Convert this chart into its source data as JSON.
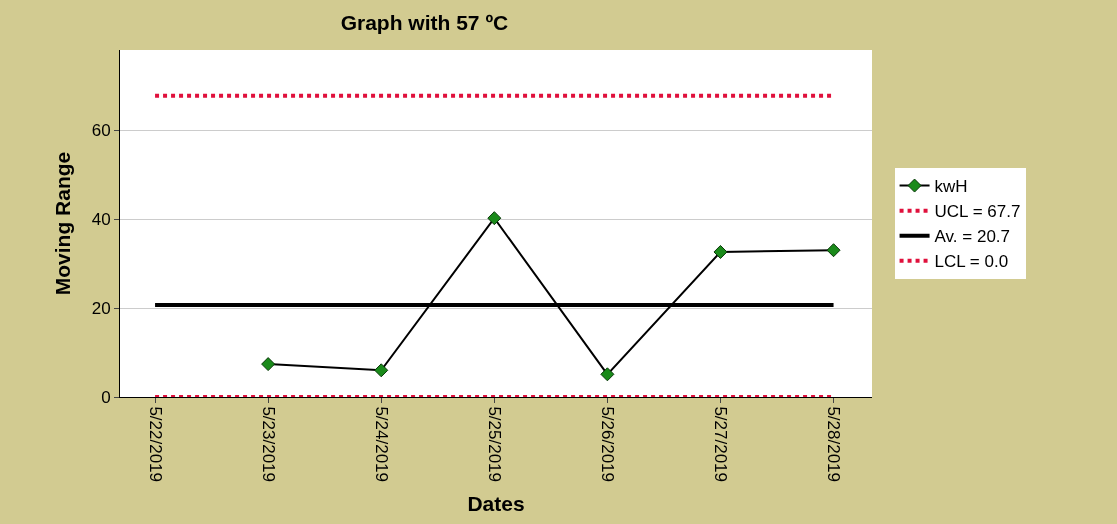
{
  "chart_data": {
    "type": "line",
    "title": "Graph with 57 ºC",
    "xlabel": "Dates",
    "ylabel": "Moving Range",
    "categories": [
      "5/22/2019",
      "5/23/2019",
      "5/24/2019",
      "5/25/2019",
      "5/26/2019",
      "5/27/2019",
      "5/28/2019"
    ],
    "series": [
      {
        "name": "kwH",
        "color": "#000000",
        "values": [
          null,
          7.4,
          6.0,
          40.2,
          5.1,
          32.6,
          33.0
        ]
      }
    ],
    "ref_lines": [
      {
        "axis": "y",
        "value": 67.7,
        "label": "UCL = 67.7",
        "color": "#e0103c",
        "line_style": "dotted"
      },
      {
        "axis": "y",
        "value": 20.7,
        "label": "Av. = 20.7",
        "color": "#000000",
        "line_style": "solid"
      },
      {
        "axis": "y",
        "value": 0.0,
        "label": "LCL = 0.0",
        "color": "#e0103c",
        "line_style": "dotted"
      }
    ],
    "ylim": [
      0,
      78
    ],
    "yticks": [
      0,
      20,
      40,
      60
    ],
    "grid": "y",
    "legend": "right",
    "marker": "diamond",
    "line_style": "solid"
  }
}
